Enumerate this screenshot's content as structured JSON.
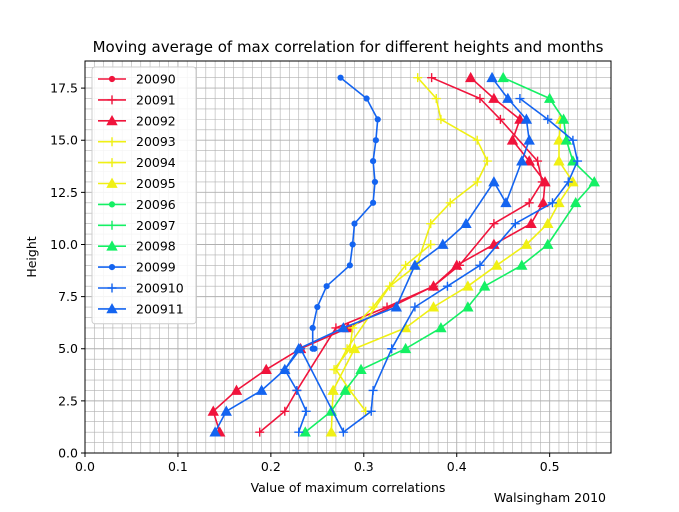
{
  "footer": {
    "credit": "Walsingham 2010"
  },
  "colors": {
    "red": "#f0143c",
    "yellow": "#f0f014",
    "green": "#14f064",
    "blue": "#1464f0",
    "grid": "#b0b0b0"
  },
  "chart_data": {
    "type": "line",
    "title": "Moving average of max correlation for different heights and months",
    "xlabel": "Value of maximum correlations",
    "ylabel": "Height",
    "xlim": [
      0,
      0.566
    ],
    "ylim": [
      0,
      18.8
    ],
    "xticks": [
      0.0,
      0.1,
      0.2,
      0.3,
      0.4,
      0.5
    ],
    "xtick_labels": [
      "0.0",
      "0.1",
      "0.2",
      "0.3",
      "0.4",
      "0.5"
    ],
    "yticks": [
      0.0,
      2.5,
      5.0,
      7.5,
      10.0,
      12.5,
      15.0,
      17.5
    ],
    "ytick_labels": [
      "0.0",
      "2.5",
      "5.0",
      "7.5",
      "10.0",
      "12.5",
      "15.0",
      "17.5"
    ],
    "grid": "on (major and minor)",
    "legend_position": "top-left",
    "series": [
      {
        "name": "20090",
        "color": "#f0143c",
        "marker": "dot",
        "x": [],
        "y": []
      },
      {
        "name": "20091",
        "color": "#f0143c",
        "marker": "plus",
        "x": [
          0.188,
          0.215,
          0.228,
          0.27,
          0.325,
          0.375,
          0.403,
          0.44,
          0.478,
          0.492,
          0.487,
          0.447,
          0.425,
          0.373
        ],
        "y": [
          1.0,
          2.0,
          3.0,
          6.0,
          7.0,
          8.0,
          9.0,
          11.0,
          12.0,
          13.0,
          14.0,
          16.0,
          17.0,
          18.0
        ]
      },
      {
        "name": "20092",
        "color": "#f0143c",
        "marker": "triangle",
        "x": [
          0.145,
          0.138,
          0.163,
          0.195,
          0.232,
          0.283,
          0.375,
          0.4,
          0.44,
          0.48,
          0.493,
          0.495,
          0.478,
          0.46,
          0.468,
          0.44,
          0.415
        ],
        "y": [
          1.0,
          2.0,
          3.0,
          4.0,
          5.0,
          6.0,
          8.0,
          9.0,
          10.0,
          11.0,
          12.0,
          13.0,
          14.0,
          15.0,
          16.0,
          17.0,
          18.0
        ]
      },
      {
        "name": "20093",
        "color": "#f0f014",
        "marker": "plus",
        "x": [
          0.358,
          0.378,
          0.383,
          0.422,
          0.433,
          0.422,
          0.393,
          0.372,
          0.357,
          0.328,
          0.282,
          0.27,
          0.285,
          0.302
        ],
        "y": [
          18.0,
          17.0,
          16.0,
          15.0,
          14.0,
          13.0,
          12.0,
          11.0,
          9.0,
          8.0,
          5.0,
          4.0,
          3.0,
          2.0
        ]
      },
      {
        "name": "20094",
        "color": "#f0f014",
        "marker": "plus",
        "x": [
          0.372,
          0.345,
          0.31,
          0.288,
          0.285,
          0.268
        ],
        "y": [
          10.0,
          9.0,
          7.0,
          6.0,
          5.0,
          4.0
        ]
      },
      {
        "name": "20095",
        "color": "#f0f014",
        "marker": "triangle",
        "x": [
          0.265,
          0.267,
          0.29,
          0.345,
          0.375,
          0.412,
          0.443,
          0.475,
          0.498,
          0.51,
          0.525,
          0.51,
          0.51,
          0.512
        ],
        "y": [
          1.0,
          3.0,
          5.0,
          6.0,
          7.0,
          8.0,
          9.0,
          10.0,
          11.0,
          12.0,
          13.0,
          14.0,
          15.0,
          16.0
        ]
      },
      {
        "name": "20096",
        "color": "#14f064",
        "marker": "dot",
        "x": [],
        "y": []
      },
      {
        "name": "20097",
        "color": "#14f064",
        "marker": "plus",
        "x": [],
        "y": []
      },
      {
        "name": "20098",
        "color": "#14f064",
        "marker": "triangle",
        "x": [
          0.237,
          0.265,
          0.28,
          0.297,
          0.345,
          0.383,
          0.412,
          0.43,
          0.47,
          0.498,
          0.528,
          0.548,
          0.525,
          0.518,
          0.515,
          0.5,
          0.45
        ],
        "y": [
          1.0,
          2.0,
          3.0,
          4.0,
          5.0,
          6.0,
          7.0,
          8.0,
          9.0,
          10.0,
          12.0,
          13.0,
          14.0,
          15.0,
          16.0,
          17.0,
          18.0
        ]
      },
      {
        "name": "20099",
        "color": "#1464f0",
        "marker": "dot",
        "x": [
          0.275,
          0.303,
          0.315,
          0.313,
          0.31,
          0.312,
          0.31,
          0.29,
          0.288,
          0.285,
          0.26,
          0.25,
          0.245,
          0.245,
          0.247
        ],
        "y": [
          18.0,
          17.0,
          16.0,
          15.0,
          14.0,
          13.0,
          12.0,
          11.0,
          10.0,
          9.0,
          8.0,
          7.0,
          6.0,
          5.0,
          5.0
        ]
      },
      {
        "name": "200910",
        "color": "#1464f0",
        "marker": "plus",
        "x": [
          0.23,
          0.238,
          0.228,
          0.215,
          0.232,
          0.278,
          0.308,
          0.31,
          0.33,
          0.355,
          0.39,
          0.425,
          0.463,
          0.503,
          0.52,
          0.53,
          0.525,
          0.498,
          0.468
        ],
        "y": [
          1.0,
          2.0,
          3.0,
          4.0,
          5.0,
          1.0,
          2.0,
          3.0,
          5.0,
          7.0,
          8.0,
          9.0,
          11.0,
          12.0,
          13.0,
          14.0,
          15.0,
          16.0,
          17.0
        ]
      },
      {
        "name": "200911",
        "color": "#1464f0",
        "marker": "triangle",
        "x": [
          0.14,
          0.152,
          0.19,
          0.215,
          0.23,
          0.278,
          0.335,
          0.355,
          0.385,
          0.41,
          0.44,
          0.453,
          0.47,
          0.478,
          0.475,
          0.455,
          0.438
        ],
        "y": [
          1.0,
          2.0,
          3.0,
          4.0,
          5.0,
          6.0,
          7.0,
          9.0,
          10.0,
          11.0,
          13.0,
          12.0,
          14.0,
          15.0,
          16.0,
          17.0,
          18.0
        ]
      }
    ]
  }
}
